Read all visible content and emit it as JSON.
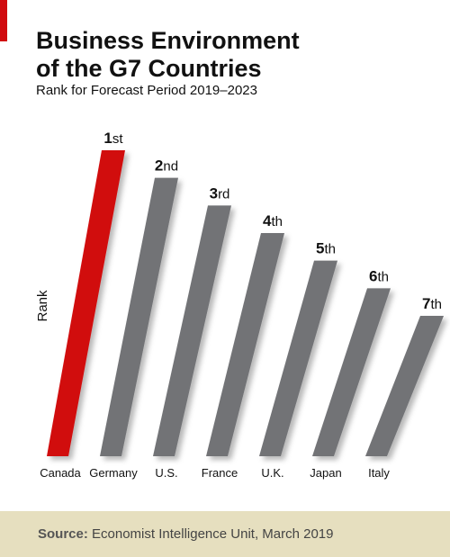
{
  "header": {
    "title_line1": "Business Environment",
    "title_line2": "of the G7 Countries",
    "subtitle": "Rank for Forecast Period 2019–2023"
  },
  "footer": {
    "source_label": "Source:",
    "source_text": " Economist Intelligence Unit, March 2019"
  },
  "colors": {
    "highlight": "#d10a0f",
    "bar": "#727376",
    "accent": "#d10a0f",
    "footer_bg": "#e6dfbf"
  },
  "chart_data": {
    "type": "bar",
    "ylabel": "Rank",
    "categories": [
      "Canada",
      "Germany",
      "U.S.",
      "France",
      "U.K.",
      "Japan",
      "Italy"
    ],
    "values": [
      1,
      2,
      3,
      4,
      5,
      6,
      7
    ],
    "rank_labels": [
      {
        "num": "1",
        "suffix": "st"
      },
      {
        "num": "2",
        "suffix": "nd"
      },
      {
        "num": "3",
        "suffix": "rd"
      },
      {
        "num": "4",
        "suffix": "th"
      },
      {
        "num": "5",
        "suffix": "th"
      },
      {
        "num": "6",
        "suffix": "th"
      },
      {
        "num": "7",
        "suffix": "th"
      }
    ],
    "highlight_index": 0,
    "ylim": [
      1,
      7
    ],
    "grid": false,
    "legend": false
  }
}
